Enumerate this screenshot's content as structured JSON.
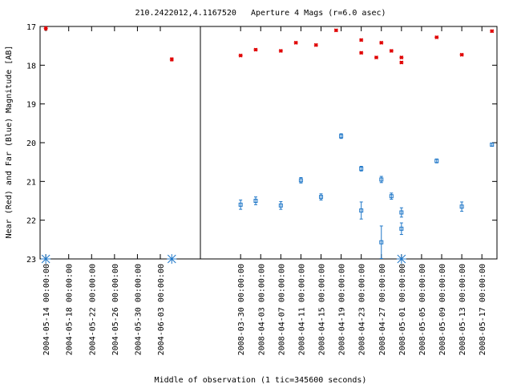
{
  "chart_data": {
    "type": "scatter",
    "title": "210.2422012,4.1167520   Aperture 4 Mags (r=6.0 asec)",
    "ylabel": "Near (Red) and Far (Blue) Magnitude [AB]",
    "xlabel": "Middle of observation (1 tic=345600 seconds)",
    "ylim": [
      17,
      23
    ],
    "y_inverted": true,
    "yticks": [
      "17",
      "18",
      "19",
      "20",
      "21",
      "22",
      "23"
    ],
    "grid": false,
    "colors": {
      "near": "#e00000",
      "far": "#1f77c8",
      "axis": "#000000"
    },
    "panels": [
      {
        "xlim": [
          "2004-05-13",
          "2004-06-10"
        ],
        "xticks": [
          "2004-05-14 00:00:00",
          "2004-05-18 00:00:00",
          "2004-05-22 00:00:00",
          "2004-05-26 00:00:00",
          "2004-05-30 00:00:00",
          "2004-06-03 00:00:00"
        ],
        "near": [
          {
            "x": "2004-05-14",
            "y": 17.05,
            "err": 0.04
          },
          {
            "x": "2004-06-05",
            "y": 17.85,
            "err": 0.04
          }
        ],
        "far": [],
        "far_upper_limits": [
          "2004-05-14",
          "2004-06-05"
        ]
      },
      {
        "xlim": [
          "2008-03-22",
          "2008-05-20"
        ],
        "xticks": [
          "2008-03-30 00:00:00",
          "2008-04-03 00:00:00",
          "2008-04-07 00:00:00",
          "2008-04-11 00:00:00",
          "2008-04-15 00:00:00",
          "2008-04-19 00:00:00",
          "2008-04-23 00:00:00",
          "2008-04-27 00:00:00",
          "2008-05-01 00:00:00",
          "2008-05-05 00:00:00",
          "2008-05-09 00:00:00",
          "2008-05-13 00:00:00",
          "2008-05-17 00:00:00"
        ],
        "near": [
          {
            "x": "2008-03-30",
            "y": 17.75,
            "err": 0.03
          },
          {
            "x": "2008-04-02",
            "y": 17.6,
            "err": 0.03
          },
          {
            "x": "2008-04-07",
            "y": 17.63,
            "err": 0.03
          },
          {
            "x": "2008-04-10",
            "y": 17.42,
            "err": 0.03
          },
          {
            "x": "2008-04-14",
            "y": 17.48,
            "err": 0.03
          },
          {
            "x": "2008-04-18",
            "y": 17.1,
            "err": 0.03
          },
          {
            "x": "2008-04-23",
            "y": 17.35,
            "err": 0.03
          },
          {
            "x": "2008-04-23",
            "y": 17.68,
            "err": 0.03
          },
          {
            "x": "2008-04-26",
            "y": 17.8,
            "err": 0.03
          },
          {
            "x": "2008-04-27",
            "y": 17.42,
            "err": 0.03
          },
          {
            "x": "2008-04-29",
            "y": 17.63,
            "err": 0.03
          },
          {
            "x": "2008-05-01",
            "y": 17.8,
            "err": 0.03
          },
          {
            "x": "2008-05-01",
            "y": 17.93,
            "err": 0.03
          },
          {
            "x": "2008-05-08",
            "y": 17.28,
            "err": 0.03
          },
          {
            "x": "2008-05-13",
            "y": 17.73,
            "err": 0.03
          },
          {
            "x": "2008-05-19",
            "y": 17.12,
            "err": 0.03
          }
        ],
        "far": [
          {
            "x": "2008-03-30",
            "y": 21.6,
            "err": 0.12
          },
          {
            "x": "2008-04-02",
            "y": 21.5,
            "err": 0.1
          },
          {
            "x": "2008-04-07",
            "y": 21.62,
            "err": 0.1
          },
          {
            "x": "2008-04-11",
            "y": 20.97,
            "err": 0.07
          },
          {
            "x": "2008-04-15",
            "y": 21.4,
            "err": 0.08
          },
          {
            "x": "2008-04-19",
            "y": 19.83,
            "err": 0.06
          },
          {
            "x": "2008-04-23",
            "y": 20.67,
            "err": 0.06
          },
          {
            "x": "2008-04-23",
            "y": 21.75,
            "err": 0.22
          },
          {
            "x": "2008-04-27",
            "y": 22.57,
            "err": 0.42
          },
          {
            "x": "2008-04-27",
            "y": 20.95,
            "err": 0.08
          },
          {
            "x": "2008-04-29",
            "y": 21.38,
            "err": 0.08
          },
          {
            "x": "2008-05-01",
            "y": 21.8,
            "err": 0.12
          },
          {
            "x": "2008-05-01",
            "y": 22.22,
            "err": 0.15
          },
          {
            "x": "2008-05-08",
            "y": 20.47,
            "err": 0.05
          },
          {
            "x": "2008-05-13",
            "y": 21.65,
            "err": 0.12
          },
          {
            "x": "2008-05-19",
            "y": 20.05,
            "err": 0.04
          }
        ],
        "far_upper_limits": [
          "2008-05-01"
        ]
      }
    ]
  }
}
